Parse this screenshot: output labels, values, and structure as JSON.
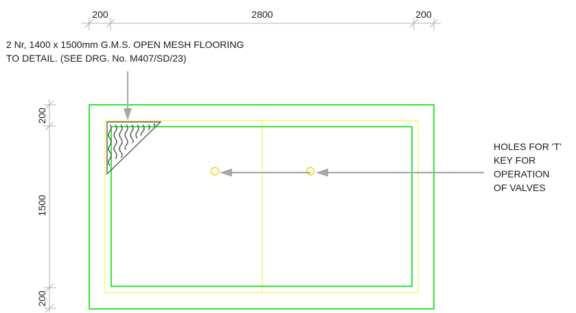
{
  "dimensions": {
    "top_left": "200",
    "top_middle": "2800",
    "top_right": "200",
    "left_top": "200",
    "left_middle": "1500",
    "left_bottom": "200"
  },
  "notes": {
    "flooring_line1": "2 Nr, 1400 x 1500mm G.M.S. OPEN MESH FLOORING",
    "flooring_line2": "TO DETAIL. (SEE DRG. No. M407/SD/23)",
    "holes_line1": "HOLES FOR 'T'",
    "holes_line2": "KEY FOR",
    "holes_line3": "OPERATION",
    "holes_line4": "OF VALVES"
  },
  "colors": {
    "outline": "#00e000",
    "mesh_panel": "#f4f05a",
    "leader": "#a8a8a8",
    "dimension": "#b0b0b0"
  }
}
